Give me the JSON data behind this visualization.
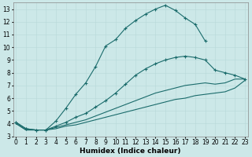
{
  "xlabel": "Humidex (Indice chaleur)",
  "bg_color": "#cce8e8",
  "line_color": "#1a6b6b",
  "xlim": [
    -0.3,
    23.3
  ],
  "ylim": [
    3,
    13.5
  ],
  "xticks": [
    0,
    1,
    2,
    3,
    4,
    5,
    6,
    7,
    8,
    9,
    10,
    11,
    12,
    13,
    14,
    15,
    16,
    17,
    18,
    19,
    20,
    21,
    22,
    23
  ],
  "yticks": [
    3,
    4,
    5,
    6,
    7,
    8,
    9,
    10,
    11,
    12,
    13
  ],
  "lines": [
    {
      "x": [
        0,
        1,
        2,
        3,
        4,
        5,
        6,
        7,
        8,
        9,
        10,
        11,
        12,
        13,
        14,
        15,
        16,
        17,
        18,
        19,
        20,
        21,
        22,
        23
      ],
      "y": [
        4.1,
        3.6,
        3.5,
        3.5,
        4.2,
        5.2,
        6.3,
        7.2,
        8.5,
        10.1,
        10.6,
        11.5,
        12.1,
        12.6,
        13.0,
        13.3,
        12.9,
        12.3,
        11.8,
        10.5,
        null,
        null,
        null,
        null
      ],
      "has_markers": true
    },
    {
      "x": [
        0,
        1,
        2,
        3,
        4,
        5,
        6,
        7,
        8,
        9,
        10,
        11,
        12,
        13,
        14,
        15,
        16,
        17,
        18,
        19,
        20,
        21,
        22,
        23
      ],
      "y": [
        4.1,
        3.6,
        3.5,
        3.5,
        3.8,
        4.1,
        4.5,
        4.8,
        5.3,
        5.8,
        6.4,
        7.1,
        7.8,
        8.3,
        8.7,
        9.0,
        9.2,
        9.3,
        9.2,
        9.0,
        8.2,
        8.0,
        7.8,
        7.5
      ],
      "has_markers": true
    },
    {
      "x": [
        0,
        1,
        2,
        3,
        4,
        5,
        6,
        7,
        8,
        9,
        10,
        11,
        12,
        13,
        14,
        15,
        16,
        17,
        18,
        19,
        20,
        21,
        22,
        23
      ],
      "y": [
        4.0,
        3.5,
        3.5,
        3.5,
        3.7,
        3.9,
        4.1,
        4.3,
        4.6,
        4.9,
        5.2,
        5.5,
        5.8,
        6.1,
        6.4,
        6.6,
        6.8,
        7.0,
        7.1,
        7.2,
        7.1,
        7.2,
        7.5,
        7.5
      ],
      "has_markers": false
    },
    {
      "x": [
        0,
        1,
        2,
        3,
        4,
        5,
        6,
        7,
        8,
        9,
        10,
        11,
        12,
        13,
        14,
        15,
        16,
        17,
        18,
        19,
        20,
        21,
        22,
        23
      ],
      "y": [
        4.0,
        3.5,
        3.5,
        3.5,
        3.6,
        3.8,
        3.9,
        4.1,
        4.3,
        4.5,
        4.7,
        4.9,
        5.1,
        5.3,
        5.5,
        5.7,
        5.9,
        6.0,
        6.2,
        6.3,
        6.4,
        6.5,
        6.8,
        7.4
      ],
      "has_markers": false
    }
  ],
  "grid_color": "#b8d8d8",
  "tick_fontsize": 5.5,
  "label_fontsize": 6.5
}
